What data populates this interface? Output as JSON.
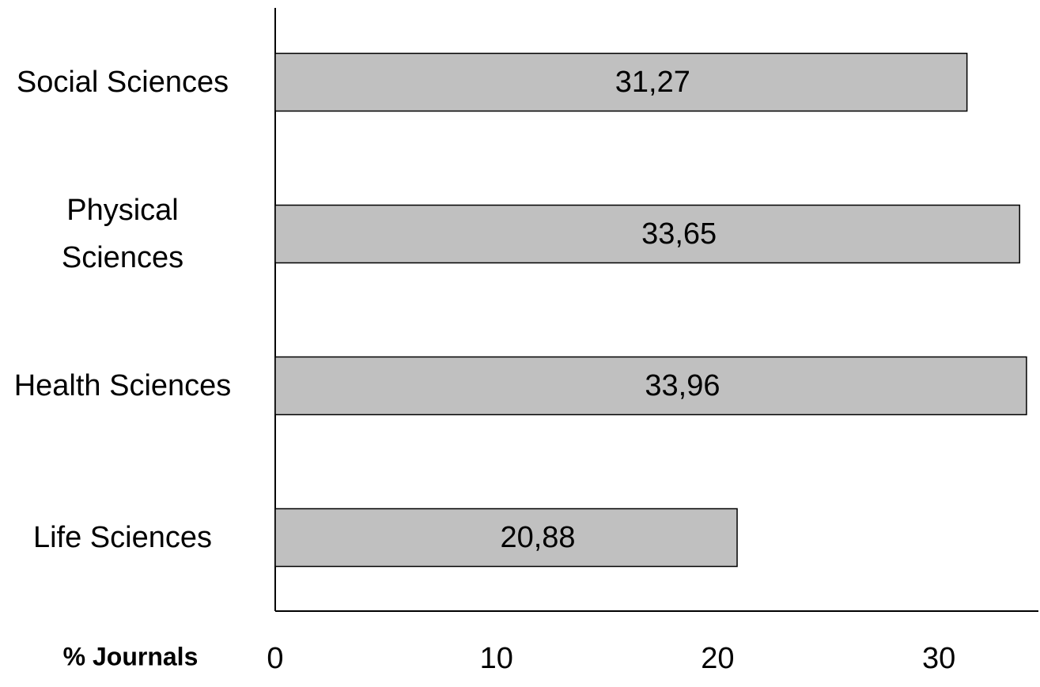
{
  "chart_data": {
    "type": "hbar",
    "categories": [
      "Social Sciences",
      "Physical Sciences",
      "Health Sciences",
      "Life Sciences"
    ],
    "values": [
      31.27,
      33.65,
      33.96,
      20.88
    ],
    "value_labels": [
      "31,27",
      "33,65",
      "33,96",
      "20,88"
    ],
    "color": "#c0c0c0",
    "xlabel": "% Journals",
    "xlim": [
      0,
      34.5
    ],
    "xticks": [
      0,
      10,
      20,
      30
    ],
    "grid": false
  }
}
